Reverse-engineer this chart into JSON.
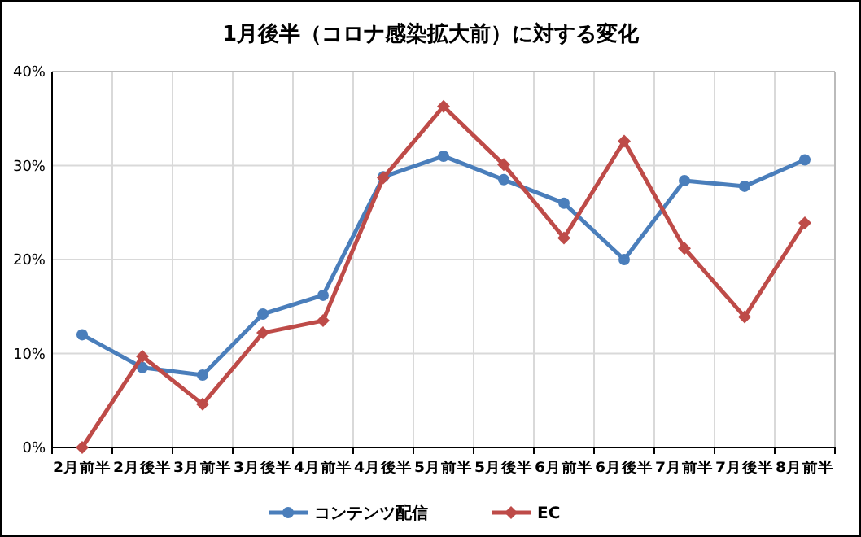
{
  "chart_data": {
    "type": "line",
    "title": "1月後半（コロナ感染拡大前）に対する変化",
    "categories": [
      "2月前半",
      "2月後半",
      "3月前半",
      "3月後半",
      "4月前半",
      "4月後半",
      "5月前半",
      "5月後半",
      "6月前半",
      "6月後半",
      "7月前半",
      "7月後半",
      "8月前半"
    ],
    "series": [
      {
        "name": "コンテンツ配信",
        "color": "#4a7ebb",
        "marker": "circle",
        "values": [
          12,
          8.5,
          7.7,
          14.2,
          16.2,
          28.8,
          31,
          28.5,
          26,
          20,
          28.4,
          27.8,
          30.6
        ]
      },
      {
        "name": "EC",
        "color": "#be4b48",
        "marker": "diamond",
        "values": [
          0,
          9.7,
          4.6,
          12.2,
          13.5,
          28.7,
          36.3,
          30.1,
          22.3,
          32.6,
          21.2,
          13.9,
          23.9
        ]
      }
    ],
    "ylim": [
      0,
      40
    ],
    "yticks": [
      {
        "value": 0,
        "label": "0%"
      },
      {
        "value": 10,
        "label": "10%"
      },
      {
        "value": 20,
        "label": "20%"
      },
      {
        "value": 30,
        "label": "30%"
      },
      {
        "value": 40,
        "label": "40%"
      }
    ],
    "grid": true,
    "legend": "bottom"
  }
}
